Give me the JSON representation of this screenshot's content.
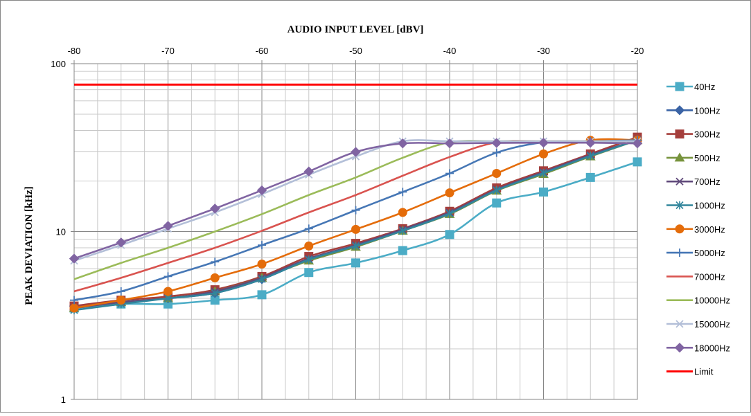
{
  "chart_data": {
    "type": "line",
    "xlabel": "AUDIO INPUT LEVEL [dBV]",
    "ylabel": "PEAK DEVIATION [kHz]",
    "x_axis_position": "top",
    "xlim": [
      -80,
      -20
    ],
    "x_ticks": [
      -80,
      -70,
      -60,
      -50,
      -40,
      -30,
      -20
    ],
    "y_scale": "log",
    "ylim": [
      1,
      100
    ],
    "y_ticks": [
      1,
      10,
      100
    ],
    "grid": true,
    "legend_position": "right",
    "x": [
      -80,
      -75,
      -70,
      -65,
      -60,
      -55,
      -50,
      -45,
      -40,
      -35,
      -30,
      -25,
      -20
    ],
    "series": [
      {
        "name": "40Hz",
        "color": "#4bacc6",
        "marker": "square",
        "values": [
          3.5,
          3.7,
          3.7,
          3.9,
          4.2,
          5.7,
          6.5,
          7.7,
          9.6,
          14.8,
          17.2,
          21.0,
          26.0
        ]
      },
      {
        "name": "100Hz",
        "color": "#3a63a5",
        "marker": "diamond",
        "values": [
          3.6,
          3.8,
          4.0,
          4.3,
          5.2,
          6.8,
          8.2,
          10.2,
          12.8,
          17.8,
          22.5,
          28.5,
          35.0
        ]
      },
      {
        "name": "300Hz",
        "color": "#a53f3c",
        "marker": "square",
        "values": [
          3.6,
          3.9,
          4.1,
          4.5,
          5.4,
          7.1,
          8.5,
          10.4,
          13.2,
          18.2,
          23.0,
          29.0,
          36.5
        ]
      },
      {
        "name": "500Hz",
        "color": "#77933c",
        "marker": "triangle",
        "values": [
          3.5,
          3.8,
          4.0,
          4.4,
          5.3,
          6.7,
          8.1,
          10.1,
          12.7,
          17.5,
          22.0,
          28.0,
          35.0
        ]
      },
      {
        "name": "700Hz",
        "color": "#604a7b",
        "marker": "x",
        "values": [
          3.5,
          3.8,
          4.0,
          4.4,
          5.3,
          6.9,
          8.3,
          10.3,
          13.0,
          17.8,
          22.6,
          28.6,
          35.0
        ]
      },
      {
        "name": "1000Hz",
        "color": "#31859c",
        "marker": "asterisk",
        "values": [
          3.4,
          3.7,
          4.0,
          4.3,
          5.2,
          6.8,
          8.2,
          10.1,
          12.8,
          17.6,
          22.3,
          28.2,
          35.0
        ]
      },
      {
        "name": "3000Hz",
        "color": "#e46c0a",
        "marker": "circle",
        "values": [
          3.5,
          3.9,
          4.4,
          5.3,
          6.4,
          8.2,
          10.3,
          13.0,
          17.0,
          22.2,
          29.0,
          35.0,
          35.0
        ]
      },
      {
        "name": "5000Hz",
        "color": "#4677b5",
        "marker": "plus",
        "values": [
          3.9,
          4.4,
          5.4,
          6.6,
          8.3,
          10.4,
          13.4,
          17.2,
          22.2,
          29.5,
          34.0,
          34.5,
          35.0
        ]
      },
      {
        "name": "7000Hz",
        "color": "#d9534f",
        "marker": "none",
        "values": [
          4.4,
          5.3,
          6.5,
          8.0,
          10.1,
          13.0,
          16.5,
          21.5,
          27.8,
          34.0,
          34.5,
          34.5,
          34.5
        ]
      },
      {
        "name": "10000Hz",
        "color": "#9bbb59",
        "marker": "none",
        "values": [
          5.2,
          6.5,
          8.0,
          10.0,
          12.7,
          16.5,
          21.0,
          27.5,
          34.0,
          34.5,
          34.5,
          34.5,
          34.5
        ]
      },
      {
        "name": "15000Hz",
        "color": "#b3bfd8",
        "marker": "x",
        "values": [
          6.7,
          8.3,
          10.4,
          13.0,
          16.7,
          21.8,
          28.0,
          34.5,
          34.5,
          34.5,
          34.5,
          34.5,
          34.5
        ]
      },
      {
        "name": "18000Hz",
        "color": "#8064a2",
        "marker": "diamond",
        "values": [
          6.9,
          8.6,
          10.8,
          13.7,
          17.6,
          22.8,
          29.8,
          33.5,
          33.5,
          33.7,
          33.8,
          33.8,
          33.5
        ]
      },
      {
        "name": "Limit",
        "color": "#ff0000",
        "marker": "none",
        "values": [
          75,
          75,
          75,
          75,
          75,
          75,
          75,
          75,
          75,
          75,
          75,
          75,
          75
        ]
      }
    ]
  }
}
